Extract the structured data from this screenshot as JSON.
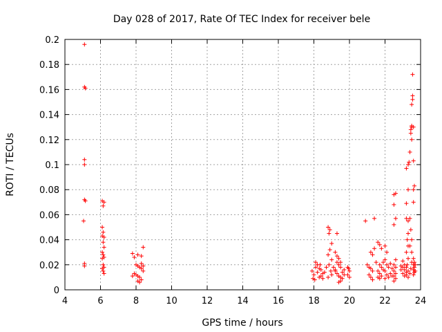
{
  "chart_data": {
    "type": "scatter",
    "title": "Day 028 of 2017, Rate Of TEC Index for receiver bele",
    "xlabel": "GPS time / hours",
    "ylabel": "ROTI / TECUs",
    "xlim": [
      4,
      24
    ],
    "ylim": [
      0,
      0.2
    ],
    "xticks": [
      4,
      6,
      8,
      10,
      12,
      14,
      16,
      18,
      20,
      22,
      24
    ],
    "yticks": [
      "0",
      "0.02",
      "0.04",
      "0.06",
      "0.08",
      "0.1",
      "0.12",
      "0.14",
      "0.16",
      "0.18",
      "0.2"
    ],
    "grid": true,
    "marker_color": "#ff0000",
    "points": [
      [
        5.1,
        0.196
      ],
      [
        5.1,
        0.162
      ],
      [
        5.15,
        0.161
      ],
      [
        5.1,
        0.104
      ],
      [
        5.1,
        0.1
      ],
      [
        5.1,
        0.072
      ],
      [
        5.15,
        0.071
      ],
      [
        5.05,
        0.055
      ],
      [
        5.1,
        0.021
      ],
      [
        5.1,
        0.019
      ],
      [
        6.1,
        0.071
      ],
      [
        6.2,
        0.07
      ],
      [
        6.15,
        0.067
      ],
      [
        6.1,
        0.05
      ],
      [
        6.15,
        0.046
      ],
      [
        6.1,
        0.043
      ],
      [
        6.2,
        0.042
      ],
      [
        6.15,
        0.038
      ],
      [
        6.2,
        0.034
      ],
      [
        6.1,
        0.03
      ],
      [
        6.15,
        0.028
      ],
      [
        6.2,
        0.026
      ],
      [
        6.1,
        0.025
      ],
      [
        6.15,
        0.02
      ],
      [
        6.2,
        0.018
      ],
      [
        6.1,
        0.017
      ],
      [
        6.15,
        0.015
      ],
      [
        6.2,
        0.013
      ],
      [
        7.8,
        0.029
      ],
      [
        7.9,
        0.026
      ],
      [
        8.1,
        0.028
      ],
      [
        8.3,
        0.027
      ],
      [
        8.4,
        0.034
      ],
      [
        8.0,
        0.02
      ],
      [
        8.1,
        0.019
      ],
      [
        8.2,
        0.018
      ],
      [
        8.3,
        0.017
      ],
      [
        8.4,
        0.019
      ],
      [
        7.9,
        0.013
      ],
      [
        8.0,
        0.012
      ],
      [
        8.1,
        0.011
      ],
      [
        8.2,
        0.01
      ],
      [
        8.3,
        0.008
      ],
      [
        8.1,
        0.007
      ],
      [
        8.2,
        0.006
      ],
      [
        7.8,
        0.011
      ],
      [
        8.4,
        0.015
      ],
      [
        8.3,
        0.021
      ],
      [
        17.9,
        0.015
      ],
      [
        18.0,
        0.012
      ],
      [
        18.1,
        0.018
      ],
      [
        18.2,
        0.014
      ],
      [
        18.3,
        0.01
      ],
      [
        18.4,
        0.016
      ],
      [
        18.5,
        0.013
      ],
      [
        18.1,
        0.022
      ],
      [
        18.2,
        0.02
      ],
      [
        18.3,
        0.017
      ],
      [
        18.4,
        0.011
      ],
      [
        18.5,
        0.009
      ],
      [
        17.95,
        0.009
      ],
      [
        18.05,
        0.008
      ],
      [
        18.35,
        0.02
      ],
      [
        18.6,
        0.014
      ],
      [
        18.7,
        0.018
      ],
      [
        18.8,
        0.05
      ],
      [
        18.9,
        0.048
      ],
      [
        18.85,
        0.045
      ],
      [
        19.0,
        0.037
      ],
      [
        18.9,
        0.032
      ],
      [
        18.8,
        0.028
      ],
      [
        19.0,
        0.024
      ],
      [
        18.85,
        0.02
      ],
      [
        18.95,
        0.015
      ],
      [
        19.0,
        0.012
      ],
      [
        18.8,
        0.01
      ],
      [
        19.1,
        0.018
      ],
      [
        19.2,
        0.016
      ],
      [
        19.3,
        0.045
      ],
      [
        19.2,
        0.03
      ],
      [
        19.3,
        0.027
      ],
      [
        19.4,
        0.025
      ],
      [
        19.3,
        0.022
      ],
      [
        19.4,
        0.02
      ],
      [
        19.5,
        0.018
      ],
      [
        19.2,
        0.015
      ],
      [
        19.3,
        0.013
      ],
      [
        19.4,
        0.011
      ],
      [
        19.5,
        0.01
      ],
      [
        19.6,
        0.009
      ],
      [
        19.5,
        0.007
      ],
      [
        19.4,
        0.006
      ],
      [
        19.6,
        0.014
      ],
      [
        19.7,
        0.016
      ],
      [
        19.7,
        0.012
      ],
      [
        19.5,
        0.022
      ],
      [
        19.9,
        0.018
      ],
      [
        20.0,
        0.015
      ],
      [
        19.9,
        0.012
      ],
      [
        20.0,
        0.01
      ],
      [
        19.95,
        0.017
      ],
      [
        20.9,
        0.055
      ],
      [
        21.0,
        0.02
      ],
      [
        21.1,
        0.018
      ],
      [
        21.2,
        0.03
      ],
      [
        21.3,
        0.028
      ],
      [
        21.2,
        0.017
      ],
      [
        21.3,
        0.015
      ],
      [
        21.1,
        0.012
      ],
      [
        21.2,
        0.01
      ],
      [
        21.3,
        0.008
      ],
      [
        21.4,
        0.057
      ],
      [
        21.4,
        0.033
      ],
      [
        21.5,
        0.022
      ],
      [
        21.6,
        0.038
      ],
      [
        21.7,
        0.036
      ],
      [
        21.8,
        0.033
      ],
      [
        21.7,
        0.02
      ],
      [
        21.8,
        0.018
      ],
      [
        21.6,
        0.015
      ],
      [
        21.7,
        0.013
      ],
      [
        21.8,
        0.011
      ],
      [
        21.7,
        0.009
      ],
      [
        21.9,
        0.022
      ],
      [
        21.9,
        0.016
      ],
      [
        21.6,
        0.01
      ],
      [
        22.0,
        0.035
      ],
      [
        22.1,
        0.03
      ],
      [
        22.0,
        0.024
      ],
      [
        22.1,
        0.02
      ],
      [
        22.2,
        0.018
      ],
      [
        22.0,
        0.015
      ],
      [
        22.1,
        0.012
      ],
      [
        22.2,
        0.01
      ],
      [
        22.0,
        0.009
      ],
      [
        22.3,
        0.021
      ],
      [
        22.3,
        0.013
      ],
      [
        22.4,
        0.017
      ],
      [
        22.4,
        0.011
      ],
      [
        22.5,
        0.076
      ],
      [
        22.6,
        0.077
      ],
      [
        22.5,
        0.068
      ],
      [
        22.6,
        0.057
      ],
      [
        22.5,
        0.052
      ],
      [
        22.6,
        0.024
      ],
      [
        22.5,
        0.02
      ],
      [
        22.6,
        0.018
      ],
      [
        22.5,
        0.015
      ],
      [
        22.6,
        0.013
      ],
      [
        22.5,
        0.011
      ],
      [
        22.6,
        0.009
      ],
      [
        22.5,
        0.007
      ],
      [
        23.0,
        0.023
      ],
      [
        23.1,
        0.02
      ],
      [
        23.0,
        0.018
      ],
      [
        23.1,
        0.016
      ],
      [
        23.2,
        0.014
      ],
      [
        23.0,
        0.013
      ],
      [
        23.1,
        0.011
      ],
      [
        22.9,
        0.019
      ],
      [
        22.9,
        0.016
      ],
      [
        23.2,
        0.069
      ],
      [
        23.3,
        0.08
      ],
      [
        23.2,
        0.097
      ],
      [
        23.3,
        0.1
      ],
      [
        23.35,
        0.102
      ],
      [
        23.2,
        0.057
      ],
      [
        23.3,
        0.055
      ],
      [
        23.3,
        0.045
      ],
      [
        23.25,
        0.04
      ],
      [
        23.3,
        0.035
      ],
      [
        23.2,
        0.03
      ],
      [
        23.3,
        0.025
      ],
      [
        23.25,
        0.02
      ],
      [
        23.2,
        0.018
      ],
      [
        23.3,
        0.015
      ],
      [
        23.2,
        0.012
      ],
      [
        23.3,
        0.01
      ],
      [
        23.4,
        0.11
      ],
      [
        23.45,
        0.128
      ],
      [
        23.5,
        0.13
      ],
      [
        23.5,
        0.131
      ],
      [
        23.45,
        0.125
      ],
      [
        23.5,
        0.12
      ],
      [
        23.5,
        0.148
      ],
      [
        23.55,
        0.152
      ],
      [
        23.55,
        0.155
      ],
      [
        23.55,
        0.172
      ],
      [
        23.4,
        0.057
      ],
      [
        23.45,
        0.048
      ],
      [
        23.5,
        0.04
      ],
      [
        23.4,
        0.035
      ],
      [
        23.5,
        0.03
      ],
      [
        23.6,
        0.13
      ],
      [
        23.6,
        0.103
      ],
      [
        23.65,
        0.083
      ],
      [
        23.6,
        0.08
      ],
      [
        23.6,
        0.07
      ],
      [
        23.6,
        0.025
      ],
      [
        23.65,
        0.022
      ],
      [
        23.6,
        0.02
      ],
      [
        23.65,
        0.018
      ],
      [
        23.6,
        0.016
      ],
      [
        23.65,
        0.014
      ],
      [
        23.6,
        0.012
      ],
      [
        23.7,
        0.02
      ],
      [
        23.7,
        0.015
      ],
      [
        23.5,
        0.022
      ],
      [
        23.45,
        0.017
      ],
      [
        23.4,
        0.013
      ]
    ]
  }
}
